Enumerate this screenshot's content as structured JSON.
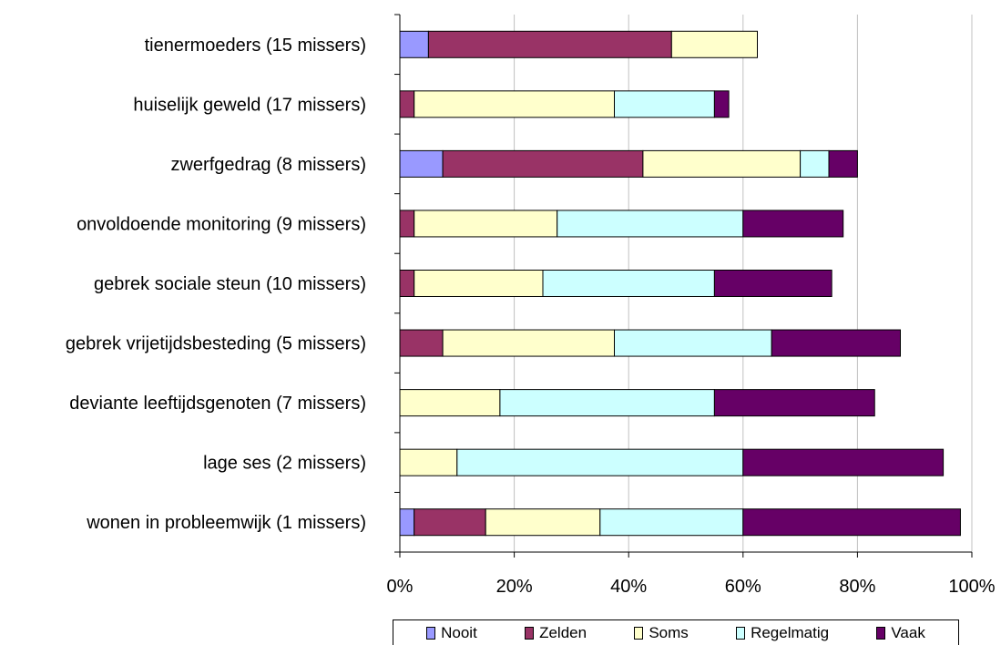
{
  "chart_data": {
    "type": "bar",
    "orientation": "horizontal",
    "stacked": true,
    "categories": [
      "tienermoeders (15 missers)",
      "huiselijk geweld (17 missers)",
      "zwerfgedrag (8 missers)",
      "onvoldoende monitoring (9 missers)",
      "gebrek sociale steun (10 missers)",
      "gebrek vrijetijdsbesteding (5 missers)",
      "deviante leeftijdsgenoten (7 missers)",
      "lage ses (2 missers)",
      "wonen in probleemwijk (1 missers)"
    ],
    "series": [
      {
        "name": "Nooit",
        "color": "#9999FF",
        "values": [
          5,
          0,
          7.5,
          0,
          0,
          0,
          0,
          0,
          2.5
        ]
      },
      {
        "name": "Zelden",
        "color": "#993366",
        "values": [
          42.5,
          2.5,
          35,
          2.5,
          2.5,
          7.5,
          0,
          0,
          12.5
        ]
      },
      {
        "name": "Soms",
        "color": "#FFFFCC",
        "values": [
          15,
          35,
          27.5,
          25,
          22.5,
          30,
          17.5,
          10,
          20
        ]
      },
      {
        "name": "Regelmatig",
        "color": "#CCFFFF",
        "values": [
          0,
          17.5,
          5,
          32.5,
          30,
          27.5,
          37.5,
          50,
          25
        ]
      },
      {
        "name": "Vaak",
        "color": "#660066",
        "values": [
          0,
          2.5,
          5,
          17.5,
          20.5,
          22.5,
          28,
          35,
          38
        ]
      }
    ],
    "xlim": [
      0,
      100
    ],
    "xticks": [
      "0%",
      "20%",
      "40%",
      "60%",
      "80%",
      "100%"
    ],
    "grid": true,
    "legend_position": "bottom"
  }
}
